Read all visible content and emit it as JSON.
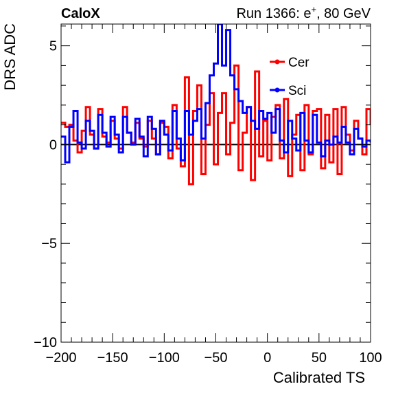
{
  "header": {
    "experiment": "CaloX",
    "run_label": "Run 1366: e",
    "run_sup": "+",
    "run_energy": ", 80 GeV"
  },
  "chart_data": {
    "type": "line",
    "xlabel": "Calibrated TS",
    "ylabel": "DRS ADC",
    "xlim": [
      -200,
      100
    ],
    "ylim": [
      -10,
      6.1
    ],
    "x_ticks": [
      -200,
      -150,
      -100,
      -50,
      0,
      50,
      100
    ],
    "x_tick_labels": [
      "−200",
      "−150",
      "−100",
      "−50",
      "0",
      "50",
      "100"
    ],
    "y_ticks": [
      -10,
      -5,
      0,
      5
    ],
    "y_tick_labels": [
      "−10",
      "−5",
      "0",
      "5"
    ],
    "grid": false,
    "legend_position": "top-right",
    "reference_line_y": 0,
    "colors": {
      "Cer": "#ff0000",
      "Sci": "#0000ff",
      "reference": "#000000"
    },
    "series": [
      {
        "name": "Cer",
        "x": [
          -200,
          -196,
          -192,
          -188,
          -184,
          -180,
          -176,
          -172,
          -168,
          -164,
          -160,
          -156,
          -152,
          -148,
          -144,
          -140,
          -136,
          -132,
          -128,
          -124,
          -120,
          -116,
          -112,
          -108,
          -104,
          -100,
          -96,
          -92,
          -88,
          -84,
          -80,
          -76,
          -72,
          -68,
          -64,
          -60,
          -56,
          -52,
          -48,
          -44,
          -40,
          -36,
          -32,
          -28,
          -24,
          -20,
          -16,
          -12,
          -8,
          -4,
          0,
          4,
          8,
          12,
          16,
          20,
          24,
          28,
          32,
          36,
          40,
          44,
          48,
          52,
          56,
          60,
          64,
          68,
          72,
          76,
          80,
          84,
          88,
          92,
          96,
          100
        ],
        "values": [
          1.1,
          0.9,
          1.0,
          0.2,
          -0.4,
          0.7,
          1.9,
          0.5,
          -0.2,
          1.8,
          0.4,
          0.1,
          1.2,
          0.3,
          -0.2,
          1.9,
          0.6,
          0.1,
          1.1,
          0.3,
          -0.1,
          1.2,
          0.3,
          -0.5,
          1.1,
          0.9,
          -0.7,
          2.0,
          -0.2,
          -1.1,
          3.4,
          -2.0,
          1.7,
          3.0,
          -1.5,
          1.0,
          2.6,
          -1.0,
          1.6,
          2.6,
          -0.5,
          1.1,
          4.0,
          -1.3,
          0.6,
          1.9,
          -1.8,
          3.7,
          -0.6,
          1.2,
          -0.8,
          1.4,
          2.0,
          -0.7,
          2.3,
          -1.6,
          0.5,
          1.5,
          -1.3,
          2.0,
          -0.5,
          1.7,
          1.8,
          -1.2,
          1.5,
          -0.9,
          1.8,
          -1.5,
          1.9,
          0.5,
          -0.3,
          1.2,
          0.3,
          -0.5,
          1.8,
          1.0
        ]
      },
      {
        "name": "Sci",
        "x": [
          -200,
          -196,
          -192,
          -188,
          -184,
          -180,
          -176,
          -172,
          -168,
          -164,
          -160,
          -156,
          -152,
          -148,
          -144,
          -140,
          -136,
          -132,
          -128,
          -124,
          -120,
          -116,
          -112,
          -108,
          -104,
          -100,
          -96,
          -92,
          -88,
          -84,
          -80,
          -76,
          -72,
          -68,
          -64,
          -60,
          -56,
          -52,
          -48,
          -44,
          -40,
          -36,
          -32,
          -28,
          -24,
          -20,
          -16,
          -12,
          -8,
          -4,
          0,
          4,
          8,
          12,
          16,
          20,
          24,
          28,
          32,
          36,
          40,
          44,
          48,
          52,
          56,
          60,
          64,
          68,
          72,
          76,
          80,
          84,
          88,
          92,
          96,
          100
        ],
        "values": [
          0.4,
          -0.9,
          0.9,
          1.7,
          0.1,
          -0.2,
          1.2,
          0.7,
          -0.2,
          1.5,
          0.6,
          -0.1,
          1.4,
          0.5,
          -0.4,
          1.4,
          0.6,
          0.0,
          1.3,
          0.4,
          -0.6,
          1.4,
          0.8,
          -0.5,
          1.2,
          0.5,
          -0.3,
          1.7,
          0.3,
          -0.8,
          1.7,
          0.5,
          1.2,
          1.8,
          0.3,
          2.1,
          3.5,
          4.1,
          6.1,
          4.0,
          5.8,
          3.5,
          2.8,
          2.2,
          1.6,
          1.9,
          1.2,
          0.8,
          1.7,
          1.3,
          1.6,
          0.6,
          1.8,
          0.2,
          -0.4,
          1.2,
          0.3,
          -0.3,
          1.6,
          0.2,
          -0.4,
          1.5,
          0.1,
          -0.6,
          0.2,
          0.0,
          0.4,
          0.1,
          0.9,
          0.1,
          -0.5,
          0.8,
          0.3,
          -0.1,
          0.2,
          0.1
        ]
      }
    ]
  }
}
